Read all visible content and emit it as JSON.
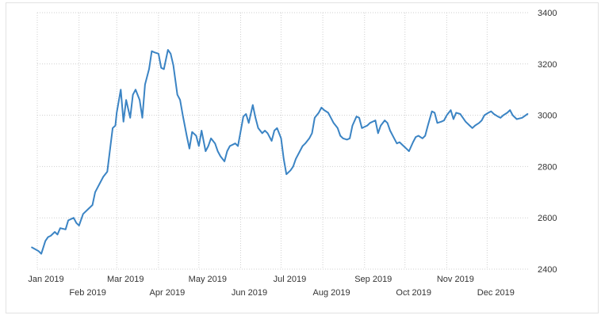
{
  "chart_data": {
    "type": "line",
    "title": "",
    "xlabel": "",
    "ylabel": "",
    "ylim": [
      2400,
      3400
    ],
    "yticks": [
      2400,
      2600,
      2800,
      3000,
      3200,
      3400
    ],
    "grid": true,
    "legend": "none",
    "line_color": "#3b84c4",
    "xticks": [
      {
        "date": "2019-01-01",
        "label": "Jan 2019"
      },
      {
        "date": "2019-02-01",
        "label": "Feb 2019"
      },
      {
        "date": "2019-03-01",
        "label": "Mar 2019"
      },
      {
        "date": "2019-04-01",
        "label": "Apr 2019"
      },
      {
        "date": "2019-05-01",
        "label": "May 2019"
      },
      {
        "date": "2019-06-01",
        "label": "Jun 2019"
      },
      {
        "date": "2019-07-01",
        "label": "Jul 2019"
      },
      {
        "date": "2019-08-01",
        "label": "Aug 2019"
      },
      {
        "date": "2019-09-01",
        "label": "Sep 2019"
      },
      {
        "date": "2019-10-01",
        "label": "Oct 2019"
      },
      {
        "date": "2019-11-01",
        "label": "Nov 2019"
      },
      {
        "date": "2019-12-01",
        "label": "Dec 2019"
      }
    ],
    "series": [
      {
        "x": [
          "2018-12-28",
          "2019-01-02",
          "2019-01-04",
          "2019-01-07",
          "2019-01-09",
          "2019-01-11",
          "2019-01-14",
          "2019-01-16",
          "2019-01-18",
          "2019-01-22",
          "2019-01-24",
          "2019-01-28",
          "2019-01-30",
          "2019-02-01",
          "2019-02-04",
          "2019-02-08",
          "2019-02-11",
          "2019-02-13",
          "2019-02-15",
          "2019-02-19",
          "2019-02-22",
          "2019-02-26",
          "2019-02-28",
          "2019-03-01",
          "2019-03-04",
          "2019-03-06",
          "2019-03-08",
          "2019-03-11",
          "2019-03-13",
          "2019-03-15",
          "2019-03-18",
          "2019-03-20",
          "2019-03-22",
          "2019-03-25",
          "2019-03-27",
          "2019-03-29",
          "2019-04-01",
          "2019-04-03",
          "2019-04-05",
          "2019-04-08",
          "2019-04-10",
          "2019-04-12",
          "2019-04-15",
          "2019-04-17",
          "2019-04-19",
          "2019-04-22",
          "2019-04-24",
          "2019-04-26",
          "2019-04-29",
          "2019-05-01",
          "2019-05-03",
          "2019-05-06",
          "2019-05-08",
          "2019-05-10",
          "2019-05-13",
          "2019-05-15",
          "2019-05-17",
          "2019-05-20",
          "2019-05-22",
          "2019-05-24",
          "2019-05-28",
          "2019-05-30",
          "2019-06-03",
          "2019-06-05",
          "2019-06-07",
          "2019-06-10",
          "2019-06-12",
          "2019-06-14",
          "2019-06-17",
          "2019-06-19",
          "2019-06-21",
          "2019-06-24",
          "2019-06-26",
          "2019-06-28",
          "2019-07-01",
          "2019-07-03",
          "2019-07-05",
          "2019-07-08",
          "2019-07-10",
          "2019-07-12",
          "2019-07-15",
          "2019-07-17",
          "2019-07-19",
          "2019-07-22",
          "2019-07-24",
          "2019-07-26",
          "2019-07-29",
          "2019-07-31",
          "2019-08-02",
          "2019-08-05",
          "2019-08-07",
          "2019-08-09",
          "2019-08-12",
          "2019-08-14",
          "2019-08-16",
          "2019-08-19",
          "2019-08-21",
          "2019-08-23",
          "2019-08-26",
          "2019-08-28",
          "2019-08-30",
          "2019-09-03",
          "2019-09-05",
          "2019-09-09",
          "2019-09-11",
          "2019-09-13",
          "2019-09-16",
          "2019-09-18",
          "2019-09-20",
          "2019-09-23",
          "2019-09-25",
          "2019-09-27",
          "2019-09-30",
          "2019-10-02",
          "2019-10-04",
          "2019-10-07",
          "2019-10-09",
          "2019-10-11",
          "2019-10-14",
          "2019-10-16",
          "2019-10-18",
          "2019-10-21",
          "2019-10-23",
          "2019-10-25",
          "2019-10-28",
          "2019-10-30",
          "2019-11-01",
          "2019-11-04",
          "2019-11-06",
          "2019-11-08",
          "2019-11-11",
          "2019-11-13",
          "2019-11-15",
          "2019-11-18",
          "2019-11-20",
          "2019-11-22",
          "2019-11-25",
          "2019-11-27",
          "2019-11-29",
          "2019-12-02",
          "2019-12-04",
          "2019-12-06",
          "2019-12-09",
          "2019-12-11",
          "2019-12-13",
          "2019-12-16",
          "2019-12-18",
          "2019-12-20",
          "2019-12-23",
          "2019-12-27",
          "2019-12-31"
        ],
        "values": [
          2485,
          2470,
          2460,
          2510,
          2525,
          2530,
          2545,
          2535,
          2560,
          2555,
          2590,
          2600,
          2580,
          2570,
          2615,
          2635,
          2650,
          2700,
          2720,
          2760,
          2780,
          2950,
          2960,
          3010,
          3100,
          2975,
          3060,
          2990,
          3080,
          3100,
          3060,
          2990,
          3120,
          3180,
          3250,
          3245,
          3240,
          3185,
          3180,
          3255,
          3240,
          3195,
          3080,
          3060,
          3000,
          2920,
          2870,
          2935,
          2920,
          2880,
          2940,
          2860,
          2880,
          2910,
          2890,
          2860,
          2840,
          2820,
          2860,
          2880,
          2890,
          2880,
          2995,
          3005,
          2970,
          3040,
          2990,
          2950,
          2930,
          2940,
          2930,
          2900,
          2940,
          2950,
          2910,
          2830,
          2770,
          2785,
          2800,
          2830,
          2860,
          2880,
          2890,
          2910,
          2930,
          2990,
          3010,
          3030,
          3020,
          3010,
          2990,
          2970,
          2950,
          2920,
          2910,
          2905,
          2910,
          2960,
          2995,
          2990,
          2950,
          2960,
          2970,
          2980,
          2930,
          2960,
          2980,
          2970,
          2940,
          2910,
          2890,
          2895,
          2880,
          2870,
          2860,
          2895,
          2915,
          2920,
          2910,
          2920,
          2960,
          3015,
          3010,
          2970,
          2975,
          2980,
          3000,
          3020,
          2985,
          3010,
          3005,
          2990,
          2975,
          2960,
          2950,
          2960,
          2970,
          2980,
          3000,
          3010,
          3015,
          3005,
          2995,
          2990,
          3000,
          3010,
          3020,
          3000,
          2985,
          2990,
          3005
        ],
        "values_note": ""
      }
    ]
  }
}
